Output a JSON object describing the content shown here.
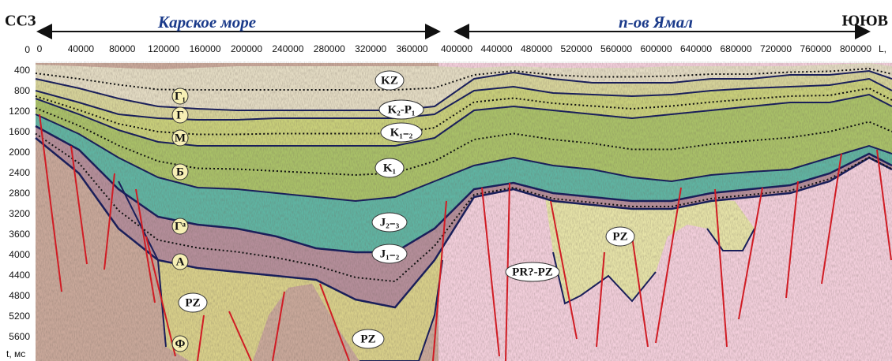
{
  "header": {
    "left_direction": "ССЗ",
    "left_region": "Карское море",
    "right_region": "п-ов Ямал",
    "right_direction": "ЮЮВ"
  },
  "x_axis": {
    "ticks": [
      0,
      40000,
      80000,
      120000,
      160000,
      200000,
      240000,
      280000,
      320000,
      360000,
      400000,
      440000,
      480000,
      520000,
      560000,
      600000,
      640000,
      680000,
      720000,
      760000,
      800000
    ],
    "label": "L,"
  },
  "y_axis": {
    "ticks": [
      0,
      400,
      800,
      1200,
      1600,
      2000,
      2400,
      2800,
      3200,
      3600,
      4000,
      4400,
      4800,
      5200,
      5600
    ],
    "label": "t, мс"
  },
  "horizon_labels": [
    "Г₁",
    "Г",
    "М",
    "Б",
    "Гᵃ",
    "А",
    "Ф"
  ],
  "unit_labels": [
    "KZ",
    "K₂-P₁",
    "K₁₋₂",
    "K₁",
    "J₂₋₃",
    "J₁₋₂",
    "PZ",
    "PR?-PZ",
    "PZ",
    "PZ"
  ]
}
